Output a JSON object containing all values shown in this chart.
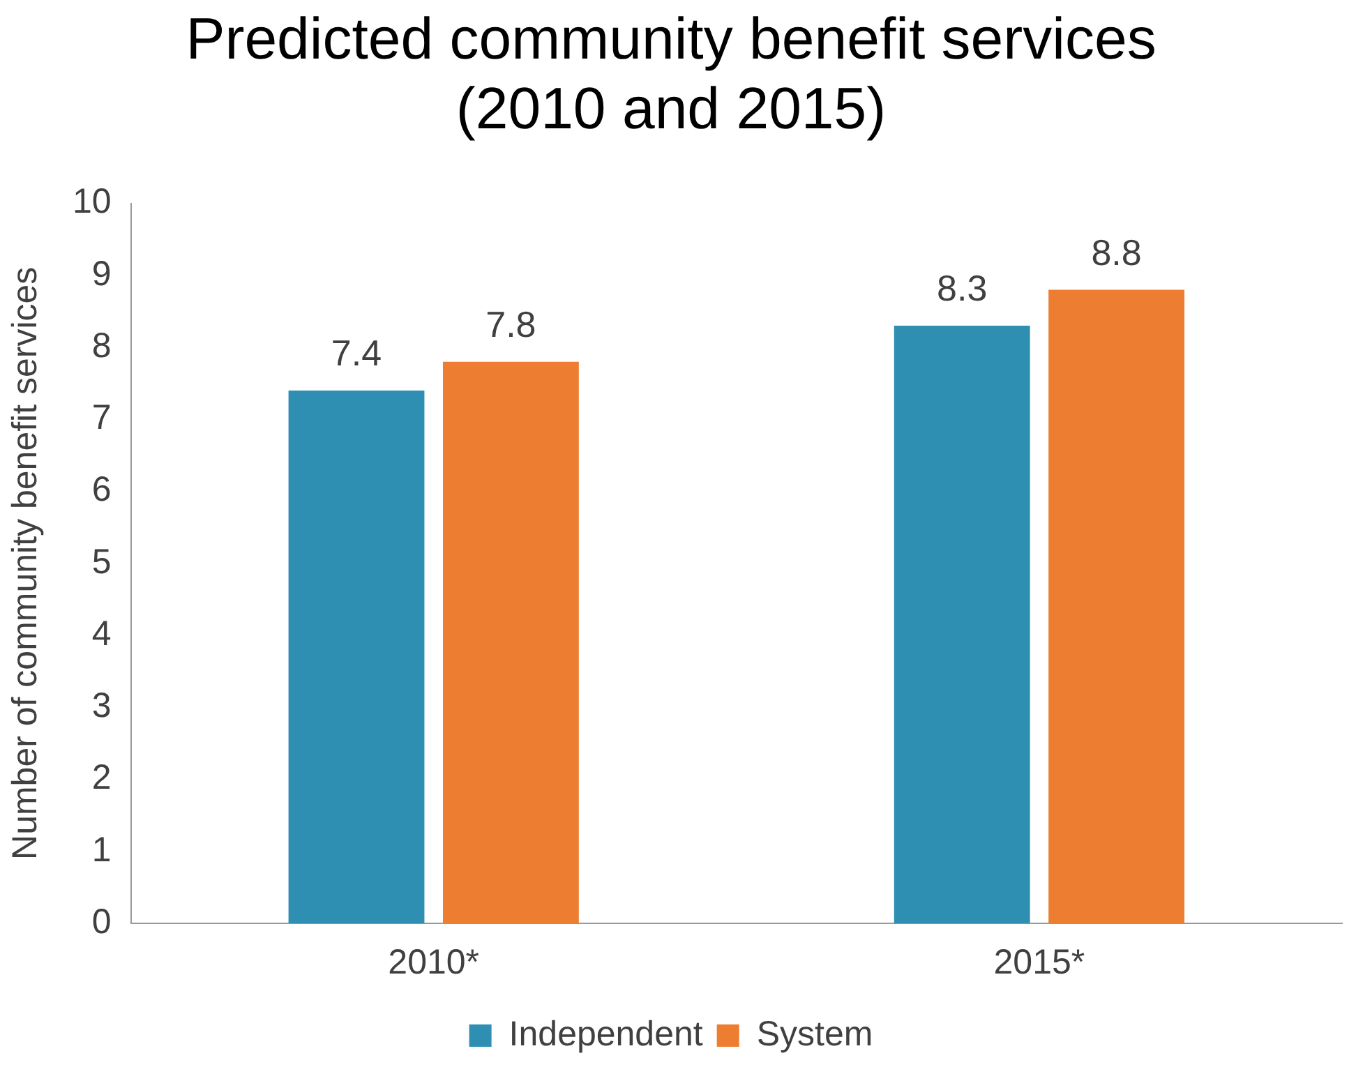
{
  "chart_data": {
    "type": "bar",
    "title": "Predicted community benefit services\n(2010 and 2015)",
    "ylabel": "Number of community benefit services",
    "categories": [
      "2010*",
      "2015*"
    ],
    "series": [
      {
        "name": "Independent",
        "color": "#2e8fb3",
        "values": [
          7.4,
          8.3
        ]
      },
      {
        "name": "System",
        "color": "#ed7d31",
        "values": [
          7.8,
          8.8
        ]
      }
    ],
    "ylim": [
      0,
      10
    ],
    "yticks": [
      0,
      1,
      2,
      3,
      4,
      5,
      6,
      7,
      8,
      9,
      10
    ],
    "grid": false,
    "legend": "bottom",
    "data_labels": true
  }
}
